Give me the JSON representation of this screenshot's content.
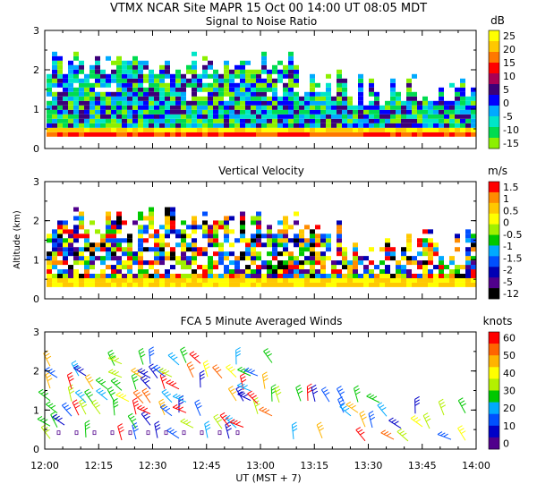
{
  "header": {
    "title": "VTMX   NCAR Site   MAPR 15 Oct 00   14:00 UT   08:05   MDT"
  },
  "chart_data": [
    {
      "type": "heatmap",
      "title": "Signal to Noise Ratio",
      "unit": "dB",
      "ylim": [
        0,
        3
      ],
      "yticks": [
        "0",
        "1",
        "2",
        "3"
      ],
      "colorbar": {
        "labels": [
          "25",
          "20",
          "15",
          "10",
          "5",
          "0",
          "-5",
          "-10",
          "-15"
        ],
        "colors": [
          "#ffff00",
          "#ffc800",
          "#ff7800",
          "#ff0000",
          "#aa0055",
          "#3c0078",
          "#0000ff",
          "#00aaff",
          "#00e6c8",
          "#00dc50",
          "#8cf000"
        ]
      }
    },
    {
      "type": "heatmap",
      "title": "Vertical Velocity",
      "unit": "m/s",
      "ylabel": "Altitude (km)",
      "ylim": [
        0,
        3
      ],
      "yticks": [
        "0",
        "1",
        "2",
        "3"
      ],
      "colorbar": {
        "labels": [
          "1.5",
          "1",
          "0.5",
          "0",
          "-0.5",
          "-1",
          "-1.5",
          "-2",
          "-5",
          "-12"
        ],
        "colors": [
          "#ff0000",
          "#ff8c00",
          "#ffc800",
          "#ffff00",
          "#a0f000",
          "#00c800",
          "#00aaff",
          "#0050ff",
          "#0000b4",
          "#50008c",
          "#000000"
        ]
      }
    },
    {
      "type": "scatter",
      "title": "FCA 5 Minute Averaged Winds",
      "unit": "knots",
      "xlabel": "UT   (MST + 7)",
      "ylim": [
        0,
        3
      ],
      "yticks": [
        "0",
        "1",
        "2",
        "3"
      ],
      "xticks": [
        "12:00",
        "12:15",
        "12:30",
        "12:45",
        "13:00",
        "13:15",
        "13:30",
        "13:45",
        "14:00"
      ],
      "colorbar": {
        "labels": [
          "60",
          "50",
          "40",
          "30",
          "20",
          "10",
          "0"
        ],
        "colors": [
          "#ff0000",
          "#ff6400",
          "#ffb400",
          "#ffff00",
          "#b4f000",
          "#00c800",
          "#00aaff",
          "#0050ff",
          "#0000c8",
          "#50008c"
        ]
      }
    }
  ]
}
